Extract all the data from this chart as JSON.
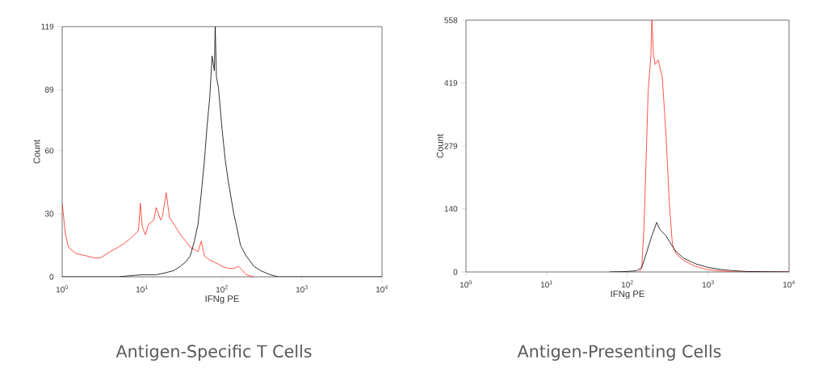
{
  "chart_data": [
    {
      "type": "line",
      "title": "Antigen-Specific T Cells",
      "xlabel": "IFNg PE",
      "ylabel": "Count",
      "log": "x",
      "xlim": [
        1,
        10000
      ],
      "ylim": [
        0,
        119
      ],
      "xticks": [
        {
          "value": 1,
          "label": "10$^{0}$"
        },
        {
          "value": 10,
          "label": "10$^{1}$"
        },
        {
          "value": 100,
          "label": "10$^{2}$"
        },
        {
          "value": 1000,
          "label": "10$^{3}$"
        },
        {
          "value": 10000,
          "label": "10$^{4}$"
        }
      ],
      "yticks": [
        0,
        30,
        60,
        89,
        119
      ],
      "series": [
        {
          "color": "#ff2a1a",
          "x": [
            1,
            1.1,
            1.2,
            1.5,
            2,
            2.5,
            3,
            4,
            5,
            6,
            7,
            8,
            9,
            9.5,
            10,
            11,
            12,
            14,
            15,
            17,
            18,
            20,
            22,
            25,
            28,
            30,
            35,
            40,
            45,
            50,
            55,
            60,
            70,
            80,
            90,
            100,
            120,
            140,
            160,
            180,
            200,
            250
          ],
          "values": [
            35,
            20,
            14,
            11,
            10,
            9,
            9,
            12,
            14,
            16,
            18,
            20,
            22,
            35,
            24,
            20,
            25,
            27,
            33,
            27,
            29,
            40,
            28,
            25,
            22,
            20,
            17,
            14,
            13,
            12,
            17,
            10,
            8,
            7,
            6,
            5,
            4,
            4,
            5,
            3,
            1,
            0
          ]
        },
        {
          "color": "#000000",
          "x": [
            1,
            5,
            10,
            15,
            20,
            25,
            30,
            35,
            40,
            45,
            50,
            55,
            60,
            65,
            70,
            75,
            80,
            82,
            85,
            90,
            100,
            110,
            120,
            140,
            150,
            170,
            200,
            250,
            300,
            400,
            500,
            10000
          ],
          "values": [
            0,
            0,
            1,
            1,
            2,
            3,
            5,
            7,
            10,
            17,
            25,
            40,
            55,
            72,
            85,
            105,
            98,
            119,
            95,
            90,
            70,
            55,
            45,
            30,
            25,
            15,
            10,
            5,
            3,
            1,
            0,
            0
          ]
        }
      ]
    },
    {
      "type": "line",
      "title": "Antigen-Presenting Cells",
      "xlabel": "IFNg PE",
      "ylabel": "Count",
      "log": "x",
      "xlim": [
        1,
        10000
      ],
      "ylim": [
        0,
        558
      ],
      "xticks": [
        {
          "value": 1,
          "label": "10$^{0}$"
        },
        {
          "value": 10,
          "label": "10$^{1}$"
        },
        {
          "value": 100,
          "label": "10$^{2}$"
        },
        {
          "value": 1000,
          "label": "10$^{3}$"
        },
        {
          "value": 10000,
          "label": "10$^{4}$"
        }
      ],
      "yticks": [
        0,
        140,
        279,
        419,
        558
      ],
      "series": [
        {
          "color": "#ff2a1a",
          "x": [
            140,
            150,
            160,
            170,
            180,
            195,
            200,
            210,
            220,
            240,
            270,
            300,
            330,
            360,
            400,
            500,
            700,
            1000,
            1500,
            2000,
            10000
          ],
          "values": [
            0,
            10,
            100,
            250,
            400,
            480,
            558,
            480,
            460,
            470,
            430,
            300,
            150,
            60,
            40,
            25,
            12,
            5,
            2,
            0,
            0
          ]
        },
        {
          "color": "#000000",
          "x": [
            60,
            100,
            130,
            150,
            170,
            200,
            230,
            250,
            300,
            350,
            400,
            500,
            700,
            1000,
            1500,
            2000,
            3000,
            10000
          ],
          "values": [
            0,
            1,
            3,
            10,
            40,
            80,
            110,
            95,
            80,
            60,
            45,
            30,
            18,
            10,
            5,
            3,
            1,
            0
          ]
        }
      ]
    }
  ]
}
